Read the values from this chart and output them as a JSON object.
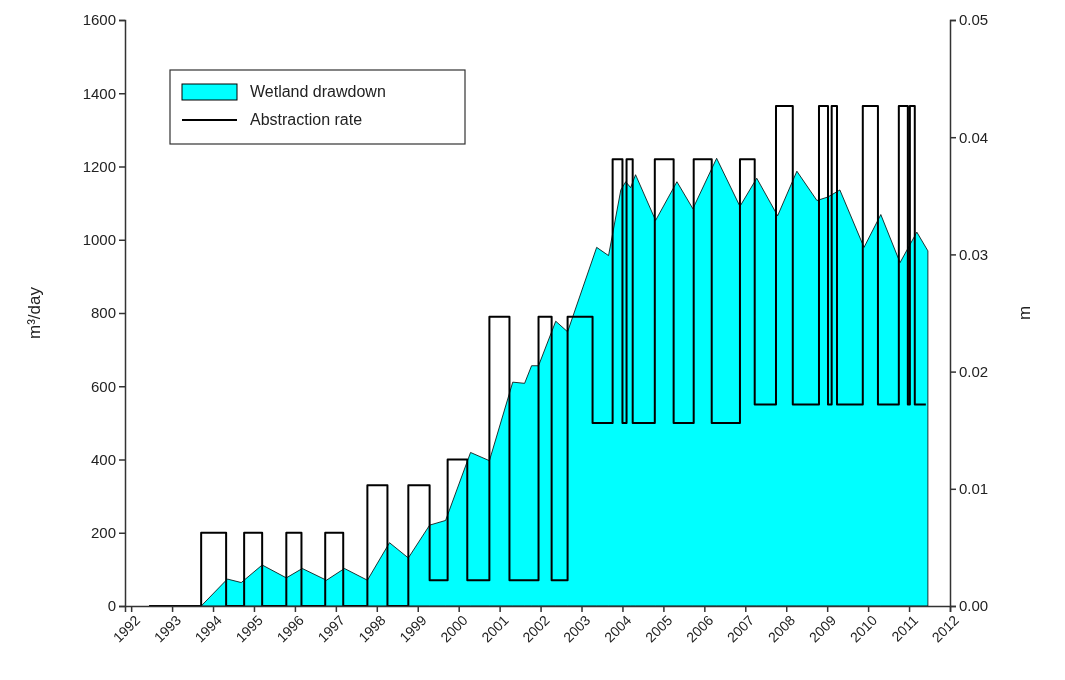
{
  "chart_data": {
    "type": "step",
    "ylabel": "m³/day",
    "y2label": "m",
    "xlim": [
      1991.85,
      2012
    ],
    "xticks": [
      1992,
      1993,
      1994,
      1995,
      1996,
      1997,
      1998,
      1999,
      2000,
      2001,
      2002,
      2003,
      2004,
      2005,
      2006,
      2007,
      2008,
      2009,
      2010,
      2011,
      2012
    ],
    "ylim": [
      0,
      1600
    ],
    "yticks": [
      0,
      200,
      400,
      600,
      800,
      1000,
      1200,
      1400,
      1600
    ],
    "y2lim": [
      0,
      0.05
    ],
    "y2ticks": [
      {
        "value": 0,
        "label": "0.00"
      },
      {
        "value": 0.01,
        "label": "0.01"
      },
      {
        "value": 0.02,
        "label": "0.02"
      },
      {
        "value": 0.03,
        "label": "0.03"
      },
      {
        "value": 0.04,
        "label": "0.04"
      },
      {
        "value": 0.05,
        "label": "0.05"
      }
    ],
    "legend": "top left",
    "grid": false,
    "series": [
      {
        "name": "Wetland drawdown",
        "type": "area",
        "axis": "y2",
        "color": "#00ffff",
        "x": [
          1992.44,
          1993.71,
          1994.35,
          1994.69,
          1995.2,
          1995.79,
          1996.18,
          1996.77,
          1997.21,
          1997.77,
          1998.31,
          1998.77,
          1999.29,
          1999.68,
          2000.29,
          2000.75,
          2001.32,
          2001.61,
          2001.78,
          2001.95,
          2002.37,
          2002.66,
          2003.37,
          2003.66,
          2003.96,
          2004.08,
          2004.2,
          2004.32,
          2004.81,
          2005.33,
          2005.72,
          2006.3,
          2006.87,
          2007.28,
          2007.79,
          2008.26,
          2008.75,
          2009.02,
          2009.31,
          2009.9,
          2010.31,
          2010.78,
          2011.19,
          2011.46
        ],
        "values": [
          0,
          0,
          0.0023,
          0.002,
          0.0035,
          0.0024,
          0.0032,
          0.0022,
          0.0032,
          0.0022,
          0.0054,
          0.0041,
          0.0069,
          0.0073,
          0.0131,
          0.0124,
          0.0191,
          0.019,
          0.0205,
          0.0205,
          0.0243,
          0.0234,
          0.0306,
          0.0299,
          0.0355,
          0.0362,
          0.0357,
          0.0368,
          0.0329,
          0.0362,
          0.0339,
          0.0382,
          0.0341,
          0.0365,
          0.0333,
          0.0371,
          0.0346,
          0.0349,
          0.0355,
          0.0306,
          0.0334,
          0.0293,
          0.0319,
          0.0303
        ]
      },
      {
        "name": "Abstraction rate",
        "color": "#000000",
        "x": [
          1992.44,
          1993.71,
          1994.32,
          1994.76,
          1995.2,
          1995.79,
          1996.16,
          1996.74,
          1997.18,
          1997.77,
          1998.26,
          1998.77,
          1999.29,
          1999.73,
          2000.21,
          2000.75,
          2001.24,
          2001.95,
          2002.27,
          2002.66,
          2003.27,
          2003.76,
          2004.0,
          2004.1,
          2004.25,
          2004.79,
          2005.25,
          2005.74,
          2006.18,
          2006.87,
          2007.23,
          2007.75,
          2008.16,
          2008.8,
          2009.02,
          2009.11,
          2009.24,
          2009.87,
          2010.24,
          2010.75,
          2010.97,
          2011.02,
          2011.14,
          2011.41
        ],
        "values": [
          0,
          200,
          0,
          200,
          0,
          200,
          0,
          200,
          0,
          330,
          0,
          330,
          70,
          400,
          70,
          790,
          70,
          790,
          70,
          790,
          500,
          1220,
          500,
          1220,
          500,
          1220,
          500,
          1220,
          500,
          1220,
          550,
          1365,
          550,
          1365,
          550,
          1365,
          550,
          1365,
          550,
          1365,
          550,
          1365,
          550,
          550
        ]
      }
    ]
  }
}
